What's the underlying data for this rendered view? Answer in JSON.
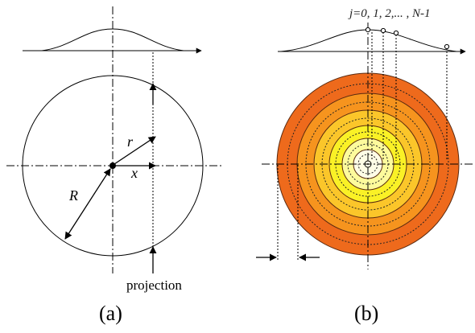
{
  "panel_a": {
    "caption": "(a)",
    "label_R": "R",
    "label_r": "r",
    "label_x": "x",
    "label_projection": "projection"
  },
  "panel_b": {
    "caption": "(b)",
    "index_label": "j=0, 1, 2,... , N-1",
    "ring_colors": [
      "#ee6a1c",
      "#f6941e",
      "#fbc62a",
      "#faf126",
      "#fdfb9c",
      "#fffde6"
    ]
  }
}
